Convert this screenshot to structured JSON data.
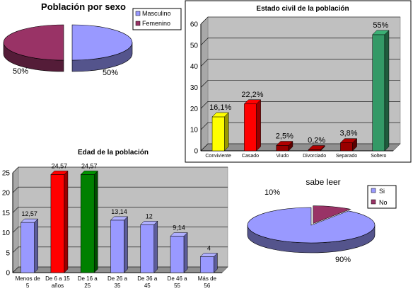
{
  "chart_data": [
    {
      "type": "pie",
      "title": "Población por sexo",
      "categories": [
        "Masculino",
        "Femenino"
      ],
      "values": [
        50,
        50
      ],
      "labels": [
        "50%",
        "50%"
      ],
      "colors": [
        "#9999ff",
        "#993366"
      ],
      "legend": "right"
    },
    {
      "type": "bar",
      "title": "Estado civil de la población",
      "categories": [
        "Conviviente",
        "Casado",
        "Viudo",
        "Divorciado",
        "Separado",
        "Soltero"
      ],
      "values": [
        16.1,
        22.2,
        2.5,
        0.2,
        3.8,
        55
      ],
      "labels": [
        "16,1%",
        "22,2%",
        "2,5%",
        "0,2%",
        "3,8%",
        "55%"
      ],
      "colors": [
        "#ffff00",
        "#ff0000",
        "#990000",
        "#990000",
        "#990000",
        "#339966"
      ],
      "yticks": [
        0,
        10,
        20,
        30,
        40,
        50,
        60
      ],
      "ylim": [
        0,
        60
      ],
      "grid": true
    },
    {
      "type": "bar",
      "title": "Edad de la población",
      "categories": [
        "Menos de 5",
        "De 6 a 15 años",
        "De 16 a 25",
        "De 26 a 35",
        "De 36 a 45",
        "De 46 a 55",
        "Más de 56"
      ],
      "category_lines": [
        [
          "Menos de",
          "5"
        ],
        [
          "De 6 a 15",
          "años"
        ],
        [
          "De 16 a",
          "25"
        ],
        [
          "De 26 a",
          "35"
        ],
        [
          "De 36 a",
          "45"
        ],
        [
          "De 46 a",
          "55"
        ],
        [
          "Más de",
          "56"
        ]
      ],
      "values": [
        12.57,
        24.57,
        24.57,
        13.14,
        12,
        9.14,
        4
      ],
      "labels": [
        "12,57",
        "24,57",
        "24,57",
        "13,14",
        "12",
        "9,14",
        "4"
      ],
      "colors": [
        "#9999ff",
        "#ff0000",
        "#008000",
        "#9999ff",
        "#9999ff",
        "#9999ff",
        "#9999ff"
      ],
      "yticks": [
        0,
        5,
        10,
        15,
        20,
        25
      ],
      "ylim": [
        0,
        25
      ],
      "grid": true
    },
    {
      "type": "pie",
      "title": "sabe leer",
      "categories": [
        "Si",
        "No"
      ],
      "values": [
        90,
        10
      ],
      "labels": [
        "90%",
        "10%"
      ],
      "colors": [
        "#9999ff",
        "#993366"
      ],
      "legend": "right"
    }
  ]
}
